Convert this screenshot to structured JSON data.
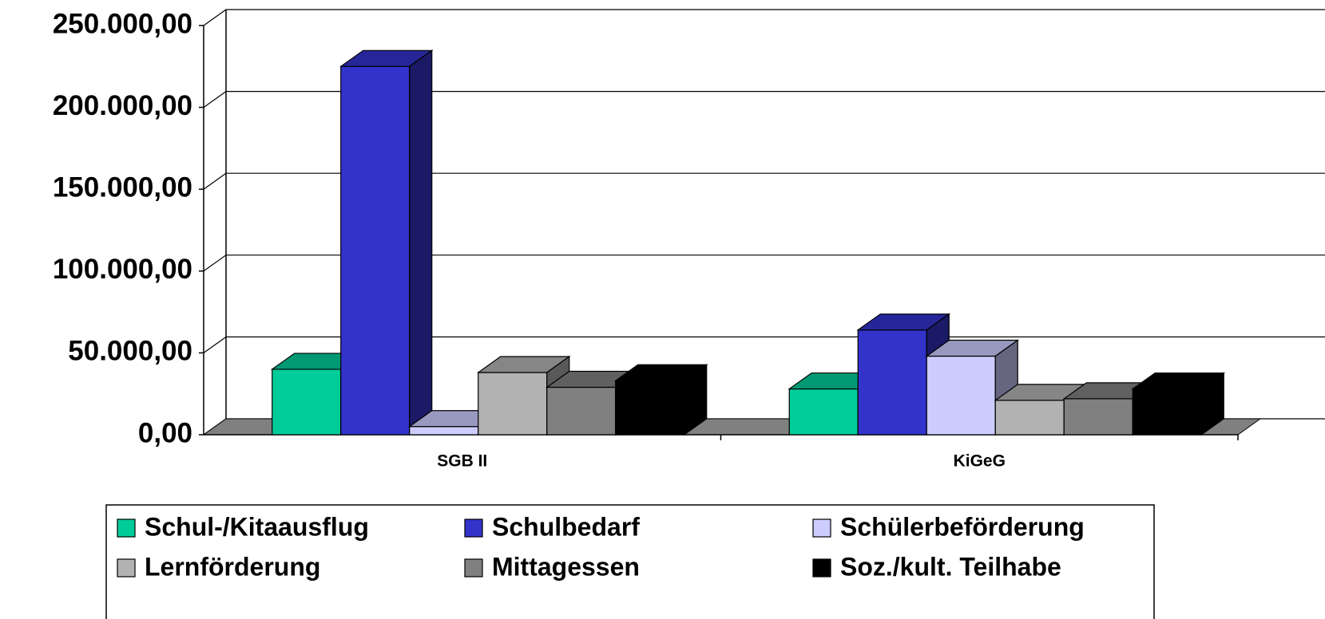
{
  "chart_data": {
    "type": "bar3d",
    "categories": [
      "SGB II",
      "KiGeG"
    ],
    "series": [
      {
        "name": "Schul-/Kitaausflug",
        "color": "#00cc99",
        "values": [
          40000,
          28000
        ]
      },
      {
        "name": "Schulbedarf",
        "color": "#3333cc",
        "values": [
          225000,
          64000
        ]
      },
      {
        "name": "Schülerbeförderung",
        "color": "#ccccff",
        "values": [
          5000,
          48000
        ]
      },
      {
        "name": "Lernförderung",
        "color": "#b2b2b2",
        "values": [
          38000,
          21000
        ]
      },
      {
        "name": "Mittagessen",
        "color": "#808080",
        "values": [
          29000,
          22000
        ]
      },
      {
        "name": "Soz./kult. Teilhabe",
        "color": "#000000",
        "values": [
          33000,
          28000
        ]
      }
    ],
    "ylim": [
      0,
      250000
    ],
    "yticks": [
      {
        "value": 0,
        "label": "0,00"
      },
      {
        "value": 50000,
        "label": "50.000,00"
      },
      {
        "value": 100000,
        "label": "100.000,00"
      },
      {
        "value": 150000,
        "label": "150.000,00"
      },
      {
        "value": 200000,
        "label": "200.000,00"
      },
      {
        "value": 250000,
        "label": "250.000,00"
      }
    ],
    "grid": true,
    "legend": "bottom"
  }
}
